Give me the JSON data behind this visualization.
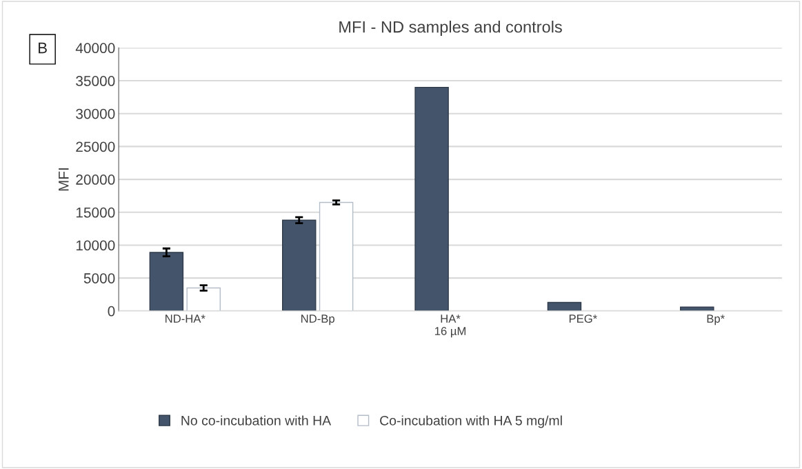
{
  "chart_data": {
    "type": "bar",
    "title": "MFI - ND samples and controls",
    "ylabel": "MFI",
    "categories": [
      "ND-HA*",
      "ND-Bp",
      "HA*\n16 µM",
      "PEG*",
      "Bp*"
    ],
    "series": [
      {
        "name": "No co-incubation with HA",
        "color": "#44546a",
        "values": [
          8900,
          13800,
          34000,
          1300,
          600
        ],
        "errors": [
          600,
          450,
          null,
          null,
          null
        ]
      },
      {
        "name": "Co-incubation with HA 5 mg/ml",
        "color": "#ffffff",
        "values": [
          3500,
          16500,
          null,
          null,
          null
        ],
        "errors": [
          400,
          300,
          null,
          null,
          null
        ]
      }
    ],
    "ylim": [
      0,
      40000
    ],
    "yticks": [
      0,
      5000,
      10000,
      15000,
      20000,
      25000,
      30000,
      35000,
      40000
    ],
    "grid": "y",
    "legend": "bottom",
    "annotations": [
      "B"
    ]
  }
}
